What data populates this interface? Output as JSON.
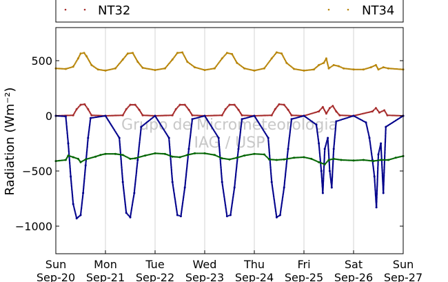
{
  "chart_data": {
    "type": "scatter",
    "title": "",
    "ylabel": "Radiation (Wm⁻²)",
    "xlabel": "",
    "ylim": [
      -1250,
      800
    ],
    "xlim": [
      0,
      7
    ],
    "yticks": [
      500,
      0,
      -500,
      -1000
    ],
    "ytick_labels": [
      "500",
      "0",
      "−500",
      "−1000"
    ],
    "xticks": [
      {
        "x": 0,
        "day": "Sun",
        "date": "Sep-20"
      },
      {
        "x": 1,
        "day": "Mon",
        "date": "Sep-21"
      },
      {
        "x": 2,
        "day": "Tue",
        "date": "Sep-22"
      },
      {
        "x": 3,
        "day": "Wed",
        "date": "Sep-23"
      },
      {
        "x": 4,
        "day": "Thu",
        "date": "Sep-24"
      },
      {
        "x": 5,
        "day": "Fri",
        "date": "Sep-25"
      },
      {
        "x": 6,
        "day": "Sat",
        "date": "Sep-26"
      },
      {
        "x": 7,
        "day": "Sun",
        "date": "Sep-27"
      }
    ],
    "grid": true,
    "legend_position": "top",
    "watermark": [
      "Grupo de Micrometeorologia",
      "IAG / USP"
    ],
    "series": [
      {
        "name": "NT34",
        "color": "#b8860b",
        "points": [
          [
            0,
            430
          ],
          [
            0.2,
            425
          ],
          [
            0.35,
            445
          ],
          [
            0.45,
            520
          ],
          [
            0.5,
            565
          ],
          [
            0.57,
            570
          ],
          [
            0.62,
            540
          ],
          [
            0.72,
            460
          ],
          [
            0.85,
            420
          ],
          [
            1,
            410
          ],
          [
            1.2,
            430
          ],
          [
            1.35,
            510
          ],
          [
            1.45,
            565
          ],
          [
            1.55,
            570
          ],
          [
            1.65,
            490
          ],
          [
            1.75,
            435
          ],
          [
            2,
            415
          ],
          [
            2.2,
            430
          ],
          [
            2.35,
            510
          ],
          [
            2.45,
            570
          ],
          [
            2.55,
            575
          ],
          [
            2.65,
            490
          ],
          [
            2.8,
            440
          ],
          [
            3,
            415
          ],
          [
            3.2,
            430
          ],
          [
            3.35,
            520
          ],
          [
            3.45,
            570
          ],
          [
            3.55,
            560
          ],
          [
            3.65,
            480
          ],
          [
            3.8,
            430
          ],
          [
            4,
            410
          ],
          [
            4.2,
            430
          ],
          [
            4.35,
            520
          ],
          [
            4.45,
            575
          ],
          [
            4.55,
            565
          ],
          [
            4.65,
            480
          ],
          [
            4.8,
            425
          ],
          [
            5,
            410
          ],
          [
            5.2,
            420
          ],
          [
            5.3,
            460
          ],
          [
            5.4,
            480
          ],
          [
            5.45,
            520
          ],
          [
            5.5,
            430
          ],
          [
            5.6,
            460
          ],
          [
            5.7,
            450
          ],
          [
            5.8,
            430
          ],
          [
            6,
            420
          ],
          [
            6.2,
            420
          ],
          [
            6.35,
            440
          ],
          [
            6.45,
            460
          ],
          [
            6.5,
            420
          ],
          [
            6.6,
            440
          ],
          [
            6.7,
            430
          ],
          [
            7,
            420
          ]
        ]
      },
      {
        "name": "NT32",
        "color": "#a52a2a",
        "points": [
          [
            0,
            0
          ],
          [
            0.35,
            5
          ],
          [
            0.42,
            60
          ],
          [
            0.5,
            100
          ],
          [
            0.58,
            105
          ],
          [
            0.65,
            60
          ],
          [
            0.72,
            5
          ],
          [
            1,
            0
          ],
          [
            1.35,
            5
          ],
          [
            1.42,
            60
          ],
          [
            1.5,
            100
          ],
          [
            1.6,
            100
          ],
          [
            1.68,
            55
          ],
          [
            1.75,
            5
          ],
          [
            2,
            0
          ],
          [
            2.35,
            5
          ],
          [
            2.42,
            60
          ],
          [
            2.5,
            100
          ],
          [
            2.6,
            100
          ],
          [
            2.68,
            55
          ],
          [
            2.75,
            5
          ],
          [
            3,
            0
          ],
          [
            3.35,
            5
          ],
          [
            3.42,
            60
          ],
          [
            3.5,
            100
          ],
          [
            3.6,
            100
          ],
          [
            3.68,
            55
          ],
          [
            3.75,
            5
          ],
          [
            4,
            0
          ],
          [
            4.35,
            5
          ],
          [
            4.42,
            60
          ],
          [
            4.5,
            105
          ],
          [
            4.6,
            100
          ],
          [
            4.68,
            55
          ],
          [
            4.75,
            5
          ],
          [
            5,
            0
          ],
          [
            5.3,
            40
          ],
          [
            5.38,
            80
          ],
          [
            5.45,
            20
          ],
          [
            5.52,
            70
          ],
          [
            5.58,
            90
          ],
          [
            5.65,
            40
          ],
          [
            5.72,
            5
          ],
          [
            6,
            0
          ],
          [
            6.38,
            40
          ],
          [
            6.45,
            70
          ],
          [
            6.52,
            30
          ],
          [
            6.62,
            50
          ],
          [
            6.68,
            5
          ],
          [
            7,
            0
          ]
        ]
      },
      {
        "name": "",
        "color": "#00008b",
        "points": [
          [
            0,
            0
          ],
          [
            0.2,
            -5
          ],
          [
            0.25,
            -250
          ],
          [
            0.3,
            -550
          ],
          [
            0.35,
            -800
          ],
          [
            0.42,
            -930
          ],
          [
            0.5,
            -900
          ],
          [
            0.55,
            -700
          ],
          [
            0.6,
            -450
          ],
          [
            0.65,
            -200
          ],
          [
            0.7,
            -20
          ],
          [
            1,
            0
          ],
          [
            1.28,
            -200
          ],
          [
            1.35,
            -600
          ],
          [
            1.42,
            -880
          ],
          [
            1.5,
            -920
          ],
          [
            1.58,
            -700
          ],
          [
            1.65,
            -400
          ],
          [
            1.72,
            -100
          ],
          [
            2,
            0
          ],
          [
            2.28,
            -200
          ],
          [
            2.35,
            -600
          ],
          [
            2.45,
            -900
          ],
          [
            2.52,
            -910
          ],
          [
            2.6,
            -650
          ],
          [
            2.68,
            -300
          ],
          [
            2.75,
            -30
          ],
          [
            3,
            0
          ],
          [
            3.28,
            -200
          ],
          [
            3.35,
            -600
          ],
          [
            3.45,
            -910
          ],
          [
            3.52,
            -900
          ],
          [
            3.6,
            -650
          ],
          [
            3.68,
            -300
          ],
          [
            3.75,
            -30
          ],
          [
            4,
            0
          ],
          [
            4.28,
            -200
          ],
          [
            4.35,
            -600
          ],
          [
            4.45,
            -920
          ],
          [
            4.52,
            -900
          ],
          [
            4.6,
            -650
          ],
          [
            4.68,
            -300
          ],
          [
            4.75,
            -30
          ],
          [
            5,
            0
          ],
          [
            5.25,
            -80
          ],
          [
            5.3,
            -250
          ],
          [
            5.35,
            -500
          ],
          [
            5.38,
            -700
          ],
          [
            5.42,
            -300
          ],
          [
            5.48,
            -200
          ],
          [
            5.52,
            -500
          ],
          [
            5.56,
            -650
          ],
          [
            5.6,
            -300
          ],
          [
            5.65,
            -50
          ],
          [
            6,
            0
          ],
          [
            6.25,
            -60
          ],
          [
            6.32,
            -200
          ],
          [
            6.38,
            -400
          ],
          [
            6.42,
            -550
          ],
          [
            6.46,
            -830
          ],
          [
            6.5,
            -350
          ],
          [
            6.55,
            -250
          ],
          [
            6.6,
            -700
          ],
          [
            6.65,
            -100
          ],
          [
            7,
            0
          ]
        ]
      },
      {
        "name": "",
        "color": "#006400",
        "points": [
          [
            0,
            -410
          ],
          [
            0.2,
            -400
          ],
          [
            0.25,
            -360
          ],
          [
            0.35,
            -375
          ],
          [
            0.45,
            -390
          ],
          [
            0.5,
            -420
          ],
          [
            0.6,
            -395
          ],
          [
            0.8,
            -370
          ],
          [
            0.9,
            -355
          ],
          [
            1,
            -345
          ],
          [
            1.2,
            -345
          ],
          [
            1.35,
            -355
          ],
          [
            1.5,
            -390
          ],
          [
            1.6,
            -385
          ],
          [
            1.8,
            -360
          ],
          [
            2,
            -340
          ],
          [
            2.2,
            -345
          ],
          [
            2.35,
            -370
          ],
          [
            2.5,
            -375
          ],
          [
            2.65,
            -355
          ],
          [
            2.8,
            -340
          ],
          [
            3,
            -340
          ],
          [
            3.2,
            -355
          ],
          [
            3.35,
            -385
          ],
          [
            3.5,
            -395
          ],
          [
            3.65,
            -380
          ],
          [
            3.8,
            -360
          ],
          [
            4,
            -345
          ],
          [
            4.2,
            -350
          ],
          [
            4.3,
            -395
          ],
          [
            4.45,
            -400
          ],
          [
            4.6,
            -395
          ],
          [
            4.8,
            -380
          ],
          [
            5,
            -375
          ],
          [
            5.15,
            -390
          ],
          [
            5.3,
            -420
          ],
          [
            5.42,
            -440
          ],
          [
            5.5,
            -400
          ],
          [
            5.6,
            -390
          ],
          [
            5.75,
            -400
          ],
          [
            6,
            -405
          ],
          [
            6.2,
            -400
          ],
          [
            6.4,
            -410
          ],
          [
            6.55,
            -400
          ],
          [
            6.7,
            -400
          ],
          [
            6.85,
            -380
          ],
          [
            7,
            -365
          ]
        ]
      }
    ]
  }
}
